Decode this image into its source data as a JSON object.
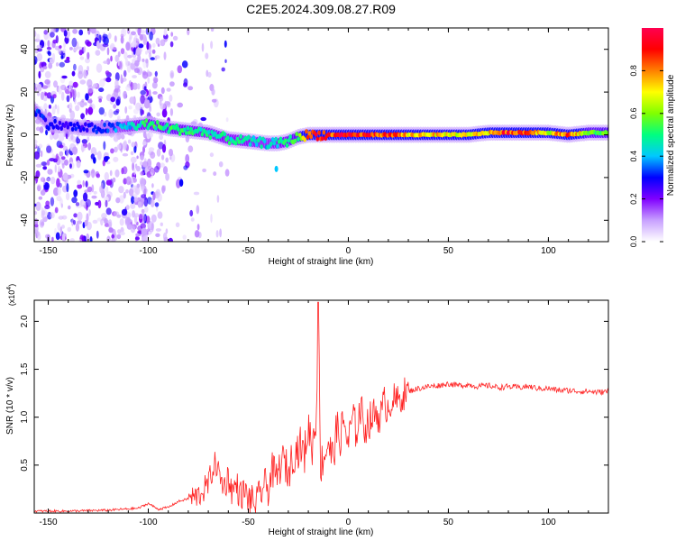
{
  "title": "C2E5.2024.309.08.27.R09",
  "chart_data": [
    {
      "type": "heatmap",
      "xlabel": "Height of straight line (km)",
      "ylabel": "Frequency (Hz)",
      "xlim": [
        -157,
        130
      ],
      "ylim": [
        -50,
        50
      ],
      "xticks": [
        -150,
        -100,
        -50,
        0,
        50,
        100
      ],
      "yticks": [
        -40,
        -20,
        0,
        20,
        40
      ],
      "colorbar": {
        "label": "Normalized spectral amplitude",
        "range": [
          0,
          1
        ],
        "ticks": [
          0.0,
          0.2,
          0.4,
          0.6,
          0.8
        ],
        "colors": [
          "#ffffff",
          "#c8a0ff",
          "#8000ff",
          "#0000ff",
          "#00c8ff",
          "#00ff80",
          "#80ff00",
          "#ffff00",
          "#ff8000",
          "#ff0000",
          "#ff0050"
        ]
      },
      "ridge": {
        "x": [
          -157,
          -150,
          -140,
          -130,
          -120,
          -110,
          -100,
          -90,
          -80,
          -70,
          -60,
          -50,
          -40,
          -35,
          -30,
          -25,
          -20,
          -10,
          0,
          10,
          20,
          30,
          40,
          50,
          60,
          70,
          80,
          90,
          100,
          110,
          120,
          130
        ],
        "y": [
          12,
          5,
          4,
          3,
          3,
          4,
          5,
          3,
          2,
          1,
          -2,
          -3,
          -4,
          -4,
          -3,
          -1,
          0,
          0,
          0,
          0,
          0,
          0,
          0,
          0,
          0,
          1,
          1,
          1,
          1,
          0,
          1,
          1
        ],
        "amplitude": [
          0.35,
          0.3,
          0.3,
          0.3,
          0.35,
          0.45,
          0.55,
          0.55,
          0.55,
          0.5,
          0.5,
          0.5,
          0.45,
          0.5,
          0.55,
          0.6,
          0.9,
          0.95,
          0.95,
          0.95,
          0.9,
          0.8,
          0.8,
          0.75,
          0.75,
          0.8,
          0.95,
          0.95,
          0.7,
          0.95,
          0.6,
          0.6
        ]
      }
    },
    {
      "type": "line",
      "xlabel": "Height of straight line (km)",
      "ylabel": "SNR (10 * v/v)",
      "y_multiplier": "(x10^4)",
      "xlim": [
        -157,
        130
      ],
      "ylim": [
        0,
        2.22
      ],
      "xticks": [
        -150,
        -100,
        -50,
        0,
        50,
        100
      ],
      "yticks": [
        0.5,
        1.0,
        1.5,
        2.0
      ],
      "series": [
        {
          "color": "#ff2020",
          "x": [
            -157,
            -140,
            -120,
            -105,
            -100,
            -95,
            -90,
            -85,
            -80,
            -75,
            -72,
            -70,
            -68,
            -66,
            -64,
            -62,
            -60,
            -58,
            -56,
            -54,
            -52,
            -50,
            -48,
            -46,
            -44,
            -42,
            -40,
            -38,
            -36,
            -34,
            -32,
            -30,
            -28,
            -26,
            -24,
            -22,
            -20,
            -18,
            -16,
            -15,
            -14,
            -12,
            -10,
            -8,
            -6,
            -4,
            -2,
            0,
            2,
            4,
            6,
            8,
            10,
            12,
            14,
            16,
            18,
            20,
            22,
            24,
            26,
            28,
            30,
            35,
            40,
            45,
            50,
            55,
            60,
            65,
            70,
            75,
            80,
            85,
            90,
            95,
            100,
            105,
            110,
            115,
            120,
            125,
            130
          ],
          "y": [
            0.02,
            0.02,
            0.03,
            0.05,
            0.1,
            0.04,
            0.06,
            0.12,
            0.15,
            0.18,
            0.25,
            0.3,
            0.45,
            0.52,
            0.35,
            0.28,
            0.38,
            0.22,
            0.3,
            0.18,
            0.22,
            0.15,
            0.12,
            0.1,
            0.2,
            0.3,
            0.25,
            0.45,
            0.35,
            0.5,
            0.55,
            0.4,
            0.6,
            0.65,
            0.7,
            0.6,
            0.9,
            0.7,
            1.0,
            2.2,
            0.5,
            0.6,
            0.75,
            0.55,
            0.85,
            0.8,
            0.95,
            0.7,
            1.0,
            0.85,
            1.1,
            0.9,
            0.95,
            1.0,
            1.05,
            1.0,
            1.15,
            1.1,
            1.2,
            1.15,
            1.2,
            1.25,
            1.27,
            1.3,
            1.32,
            1.33,
            1.35,
            1.33,
            1.34,
            1.32,
            1.33,
            1.31,
            1.32,
            1.31,
            1.32,
            1.3,
            1.3,
            1.28,
            1.28,
            1.27,
            1.27,
            1.26,
            1.27
          ]
        }
      ]
    }
  ]
}
